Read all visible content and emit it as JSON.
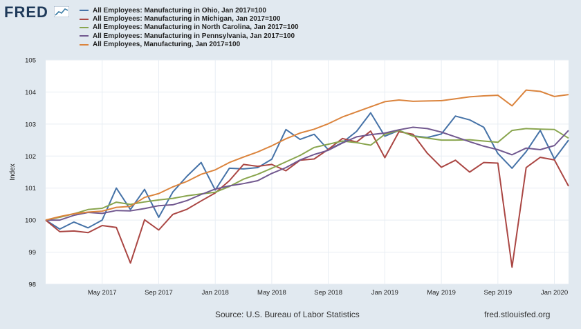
{
  "logo": {
    "text": "FRED"
  },
  "colors": {
    "background": "#e1e9f0",
    "plot_background": "#ffffff",
    "grid": "#e7edf3"
  },
  "chart_data": {
    "type": "line",
    "x": [
      "Jan 2017",
      "Feb 2017",
      "Mar 2017",
      "Apr 2017",
      "May 2017",
      "Jun 2017",
      "Jul 2017",
      "Aug 2017",
      "Sep 2017",
      "Oct 2017",
      "Nov 2017",
      "Dec 2017",
      "Jan 2018",
      "Feb 2018",
      "Mar 2018",
      "Apr 2018",
      "May 2018",
      "Jun 2018",
      "Jul 2018",
      "Aug 2018",
      "Sep 2018",
      "Oct 2018",
      "Nov 2018",
      "Dec 2018",
      "Jan 2019",
      "Feb 2019",
      "Mar 2019",
      "Apr 2019",
      "May 2019",
      "Jun 2019",
      "Jul 2019",
      "Aug 2019",
      "Sep 2019",
      "Oct 2019",
      "Nov 2019",
      "Dec 2019",
      "Jan 2020",
      "Feb 2020"
    ],
    "series": [
      {
        "name": "All Employees: Manufacturing in Ohio, Jan 2017=100",
        "color": "#4572a7",
        "values": [
          100.0,
          99.72,
          99.94,
          99.76,
          100.0,
          101.0,
          100.33,
          100.96,
          100.09,
          100.88,
          101.37,
          101.8,
          100.94,
          101.62,
          101.6,
          101.64,
          101.9,
          102.83,
          102.52,
          102.68,
          102.2,
          102.42,
          102.77,
          103.35,
          102.62,
          102.8,
          102.63,
          102.58,
          102.69,
          103.25,
          103.13,
          102.9,
          102.08,
          101.62,
          102.14,
          102.8,
          101.91,
          102.5
        ]
      },
      {
        "name": "All Employees: Manufacturing in Michigan, Jan 2017=100",
        "color": "#aa4643",
        "values": [
          100.0,
          99.64,
          99.66,
          99.61,
          99.83,
          99.77,
          98.66,
          100.01,
          99.69,
          100.18,
          100.34,
          100.6,
          100.85,
          101.23,
          101.74,
          101.68,
          101.74,
          101.54,
          101.87,
          101.91,
          102.21,
          102.55,
          102.44,
          102.78,
          101.95,
          102.76,
          102.68,
          102.09,
          101.65,
          101.87,
          101.5,
          101.8,
          101.78,
          98.53,
          101.64,
          101.96,
          101.88,
          101.06
        ]
      },
      {
        "name": "All Employees: Manufacturing in North Carolina, Jan 2017=100",
        "color": "#89a54e",
        "values": [
          100.0,
          100.09,
          100.2,
          100.33,
          100.37,
          100.56,
          100.49,
          100.57,
          100.63,
          100.68,
          100.76,
          100.82,
          100.87,
          101.05,
          101.28,
          101.43,
          101.62,
          101.82,
          102.02,
          102.27,
          102.37,
          102.47,
          102.42,
          102.34,
          102.68,
          102.8,
          102.62,
          102.56,
          102.5,
          102.5,
          102.51,
          102.47,
          102.43,
          102.8,
          102.86,
          102.84,
          102.83,
          102.56
        ]
      },
      {
        "name": "All Employees: Manufacturing in Pennsylvania, Jan 2017=100",
        "color": "#71588f",
        "values": [
          100.0,
          100.0,
          100.15,
          100.24,
          100.21,
          100.3,
          100.29,
          100.36,
          100.45,
          100.48,
          100.61,
          100.8,
          100.97,
          101.07,
          101.14,
          101.23,
          101.46,
          101.64,
          101.88,
          102.05,
          102.18,
          102.41,
          102.6,
          102.67,
          102.72,
          102.82,
          102.9,
          102.86,
          102.75,
          102.6,
          102.45,
          102.31,
          102.2,
          102.04,
          102.25,
          102.2,
          102.33,
          102.8
        ]
      },
      {
        "name": "All Employees, Manufacturing, Jan 2017=100",
        "color": "#db843d",
        "values": [
          100.0,
          100.11,
          100.2,
          100.25,
          100.28,
          100.4,
          100.43,
          100.71,
          100.83,
          101.04,
          101.21,
          101.43,
          101.57,
          101.8,
          101.97,
          102.13,
          102.32,
          102.54,
          102.72,
          102.84,
          103.01,
          103.22,
          103.38,
          103.54,
          103.7,
          103.75,
          103.71,
          103.72,
          103.73,
          103.79,
          103.85,
          103.88,
          103.9,
          103.57,
          104.06,
          104.02,
          103.86,
          103.92
        ]
      }
    ],
    "legend_order": [
      0,
      1,
      2,
      3,
      4
    ],
    "legend_position": "top",
    "title": "",
    "xlabel": "",
    "ylabel": "Index",
    "ylim": [
      98,
      105
    ],
    "y_ticks": [
      "98",
      "99",
      "100",
      "101",
      "102",
      "103",
      "104",
      "105"
    ],
    "x_ticks": [
      {
        "label": "May 2017",
        "x_index": 4
      },
      {
        "label": "Sep 2017",
        "x_index": 8
      },
      {
        "label": "Jan 2018",
        "x_index": 12
      },
      {
        "label": "May 2018",
        "x_index": 16
      },
      {
        "label": "Sep 2018",
        "x_index": 20
      },
      {
        "label": "Jan 2019",
        "x_index": 24
      },
      {
        "label": "May 2019",
        "x_index": 28
      },
      {
        "label": "Sep 2019",
        "x_index": 32
      },
      {
        "label": "Jan 2020",
        "x_index": 36
      }
    ],
    "grid": true
  },
  "footer": {
    "source": "Source: U.S. Bureau of Labor Statistics",
    "url": "fred.stlouisfed.org"
  }
}
